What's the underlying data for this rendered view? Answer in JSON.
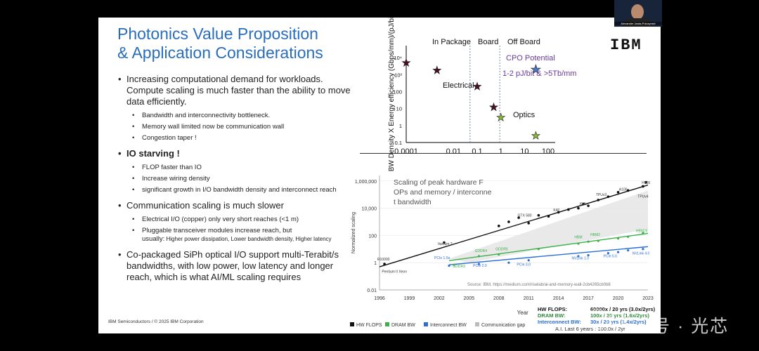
{
  "slide": {
    "title_line1": "Photonics Value Proposition",
    "title_line2": "& Application Considerations",
    "logo": "IBM",
    "footer": "IBM Semiconductors / © 2025 IBM Corporation"
  },
  "bullets": [
    {
      "text": "Increasing computational demand for workloads. Compute scaling is much faster than the ability to move data efficiently.",
      "subs": [
        "Bandwidth and interconnectivity bottleneck.",
        "Memory wall limited now be communication wall",
        "Congestion taper !"
      ]
    },
    {
      "text": "IO starving !",
      "subs": [
        "FLOP faster than IO",
        "Increase wiring density",
        "significant growth in I/O bandwidth density and interconnect reach"
      ]
    },
    {
      "text": "Communication scaling is much slower",
      "subs": [
        "Electrical I/O (copper)  only very short reaches (<1 m)",
        "Pluggable transceiver modules increase reach, but"
      ],
      "note_lead": "usually:",
      "note_rest": " Higher power dissipation, Lower bandwidth density, Higher latency"
    },
    {
      "text": "Co-packaged SiPh optical I/O support multi-Terabit/s bandwidths, with low power, low latency and longer reach, which is what AI/ML scaling requires"
    }
  ],
  "chart_data": [
    {
      "type": "scatter",
      "title": "",
      "xlabel": "",
      "ylabel": "BW Density X Energy efficiency (Gbps/mm)/(pJ/bit)",
      "x_ticks": [
        "0.0001",
        "0.01",
        "0.1",
        "1",
        "10",
        "100"
      ],
      "y_ticks": [
        "10⁴",
        "10³",
        "100",
        "10",
        "1",
        "0.1"
      ],
      "x_scale": "log",
      "y_scale": "log",
      "region_labels": [
        "In Package",
        "Board",
        "Off Board"
      ],
      "annotations": [
        "Electrical",
        "Optics",
        "CPO Potential",
        "1-2 pJ/bit & >5Tb/mm"
      ],
      "series": [
        {
          "name": "Electrical",
          "color": "#4a1020",
          "points": [
            [
              0.0001,
              5000
            ],
            [
              0.002,
              1800
            ],
            [
              0.1,
              200
            ],
            [
              0.5,
              12
            ]
          ]
        },
        {
          "name": "Optics",
          "color": "#8ab83a",
          "points": [
            [
              1,
              3
            ],
            [
              30,
              0.25
            ]
          ]
        },
        {
          "name": "CPO Potential",
          "color": "#4a78c8",
          "points": [
            [
              30,
              2000
            ]
          ]
        }
      ]
    },
    {
      "type": "scatter",
      "title": "Scaling of peak hardware FLOPs and memory / interconnect bandwidth",
      "xlabel": "Year",
      "ylabel": "Normalized scaling",
      "x_ticks": [
        "1996",
        "1999",
        "2002",
        "2005",
        "2008",
        "2011",
        "2014",
        "2017",
        "2020",
        "2023"
      ],
      "y_ticks": [
        "1,000,000",
        "10,000",
        "100",
        "1",
        "0.01"
      ],
      "y_scale": "log",
      "source": "Source: IBM, https://medium.com/riselab/ai-and-memory-wall-2cb4265cb0b8",
      "legend": [
        "HW FLOPS",
        "DRAM BW",
        "Interconnect BW",
        "Communication gap"
      ],
      "legend_colors": [
        "#111111",
        "#3cb04a",
        "#2a6ed8",
        "#bbbbbb"
      ],
      "point_labels": [
        {
          "text": "H100",
          "x": 2022.8,
          "y": 600000
        },
        {
          "text": "A100",
          "x": 2020.5,
          "y": 200000
        },
        {
          "text": "TPUv3",
          "x": 2018.3,
          "y": 80000
        },
        {
          "text": "TPUv4",
          "x": 2022.5,
          "y": 60000
        },
        {
          "text": "KNL",
          "x": 2016.5,
          "y": 17000
        },
        {
          "text": "K40",
          "x": 2013.8,
          "y": 6000
        },
        {
          "text": "GTX 580",
          "x": 2010.6,
          "y": 2500
        },
        {
          "text": "Itanium 2",
          "x": 2002.6,
          "y": 20
        },
        {
          "text": "R10000",
          "x": 1996.4,
          "y": 1.5
        },
        {
          "text": "Pentium II Xeon",
          "x": 1997.5,
          "y": 0.18
        },
        {
          "text": "GDDR4",
          "x": 2006.2,
          "y": 6
        },
        {
          "text": "GDDR5",
          "x": 2008.3,
          "y": 8
        },
        {
          "text": "GDDR3",
          "x": 2004.0,
          "y": 0.45
        },
        {
          "text": "HBM",
          "x": 2016.0,
          "y": 60
        },
        {
          "text": "HBM2",
          "x": 2017.7,
          "y": 95
        },
        {
          "text": "HBM2E",
          "x": 2022.4,
          "y": 180
        },
        {
          "text": "PCIe 1.0a",
          "x": 2002.3,
          "y": 1.9
        },
        {
          "text": "PCIe 2.0",
          "x": 2006.1,
          "y": 0.5
        },
        {
          "text": "PCIe 3.0",
          "x": 2010.5,
          "y": 0.6
        },
        {
          "text": "NVLink 1.0",
          "x": 2016.2,
          "y": 1.7
        },
        {
          "text": "PCIe 5.0",
          "x": 2019.2,
          "y": 2.5
        },
        {
          "text": "NVLink 4.0",
          "x": 2022.3,
          "y": 4
        }
      ],
      "series": [
        {
          "name": "HW FLOPS",
          "color": "#111111",
          "x": [
            1996.5,
            2002.5,
            2008,
            2009,
            2010,
            2011,
            2012,
            2013,
            2014,
            2015,
            2016,
            2016.5,
            2017,
            2018,
            2019,
            2020,
            2021,
            2022.5,
            2022.8
          ],
          "y": [
            0.8,
            30,
            500,
            1000,
            2000,
            800,
            3000,
            2500,
            5000,
            8000,
            10000,
            20000,
            15000,
            40000,
            70000,
            150000,
            200000,
            400000,
            800000
          ]
        },
        {
          "name": "DRAM BW",
          "color": "#3cb04a",
          "x": [
            2003.5,
            2006,
            2008,
            2012,
            2016,
            2017,
            2018,
            2020,
            2021,
            2022.5
          ],
          "y": [
            0.7,
            3,
            4,
            10,
            25,
            35,
            40,
            60,
            80,
            150
          ]
        },
        {
          "name": "Interconnect BW",
          "color": "#2a6ed8",
          "x": [
            2003,
            2006,
            2009,
            2011,
            2016,
            2017,
            2019,
            2020,
            2021,
            2022.5
          ],
          "y": [
            0.6,
            0.8,
            1,
            1.5,
            3,
            3.5,
            5,
            6,
            8,
            10
          ]
        }
      ],
      "summary": [
        {
          "label": "HW FLOPS:",
          "text": "60000x / 20 yrs (3.0x/2yrs)",
          "color": "#111111"
        },
        {
          "label": "DRAM BW:",
          "text": "100x / 20 yrs (1.6x/2yrs)",
          "color": "#2e8b3a"
        },
        {
          "label": "Interconnect BW:",
          "text": "30x / 20 yrs (1.4x/2yrs)",
          "color": "#2a6ed8"
        }
      ],
      "summary_footer": "A.I. Last 6 years : 100.0x / 2yr"
    }
  ],
  "presenter": {
    "caption": "Alexander Janta-Polczynski"
  },
  "watermark": "号 · 光芯"
}
